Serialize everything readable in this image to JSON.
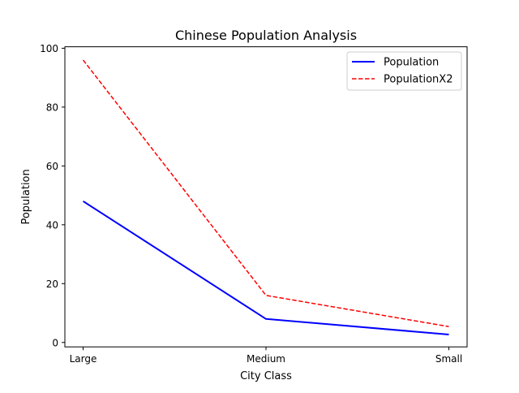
{
  "chart_data": {
    "type": "line",
    "title": "Chinese Population Analysis",
    "xlabel": "City Class",
    "ylabel": "Population",
    "categories": [
      "Large",
      "Medium",
      "Small"
    ],
    "ylim": [
      -1.5,
      100.5
    ],
    "yticks": [
      0,
      20,
      40,
      60,
      80,
      100
    ],
    "grid": false,
    "legend_position": "top-right",
    "series": [
      {
        "name": "Population",
        "values": [
          48,
          8,
          2.7
        ],
        "color": "#0000ff",
        "style": "solid"
      },
      {
        "name": "PopulationX2",
        "values": [
          96,
          16,
          5.4
        ],
        "color": "#ff0000",
        "style": "dashed"
      }
    ]
  }
}
